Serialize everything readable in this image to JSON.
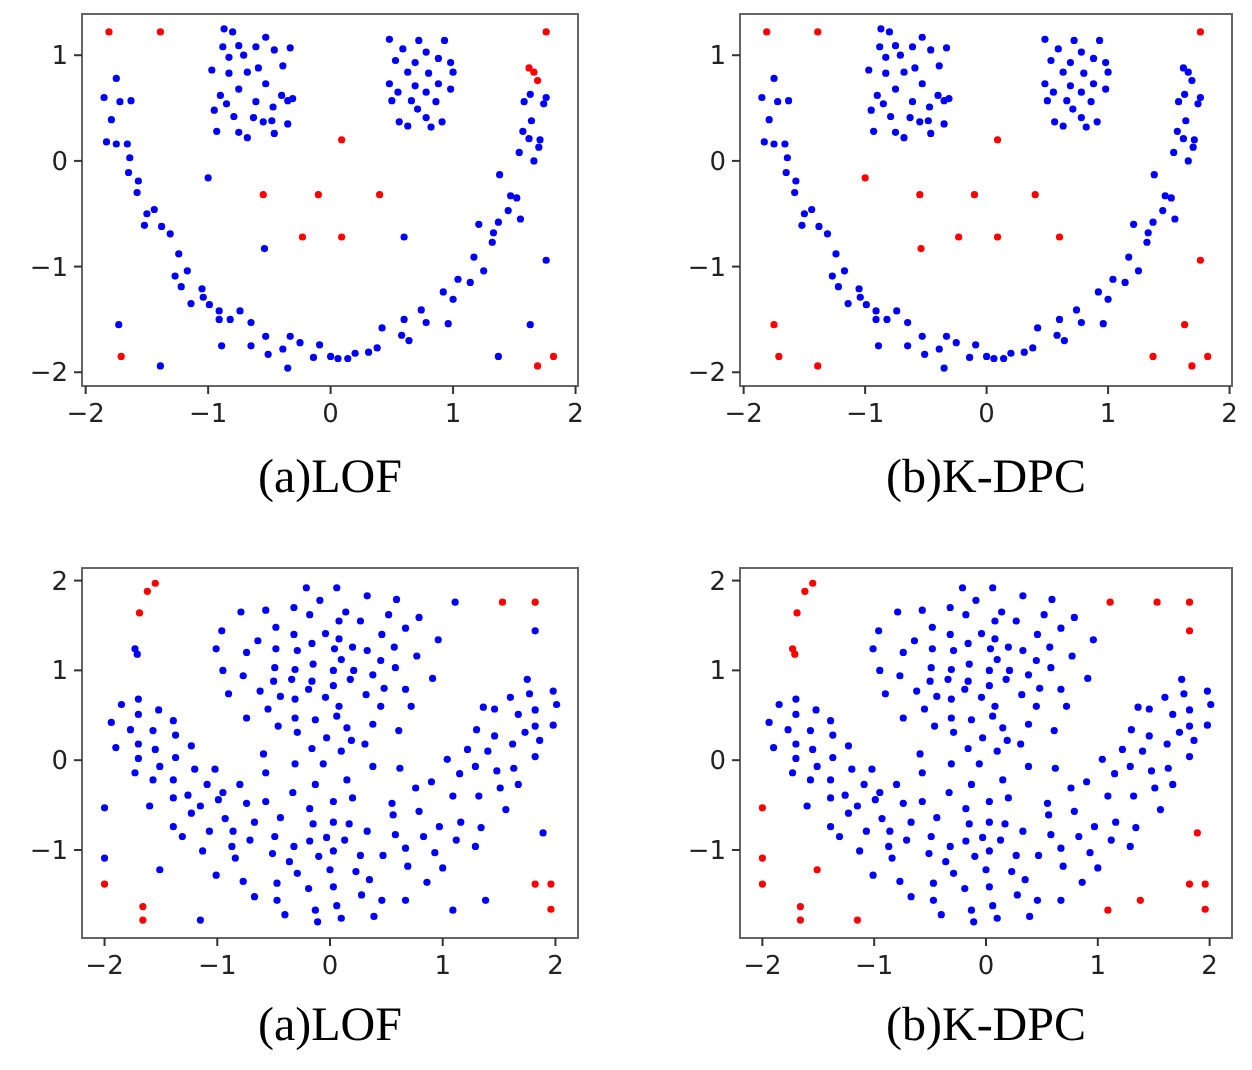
{
  "chart_data": [
    {
      "type": "scatter",
      "xlabel": "(a)LOF",
      "marker": "circle",
      "xlim": [
        -2.03,
        2.02
      ],
      "ylim": [
        -2.13,
        1.39
      ],
      "xticks": [
        -2,
        -1,
        0,
        1,
        2
      ],
      "yticks": [
        -2,
        -1,
        0,
        1
      ],
      "series": [
        {
          "color": "#0000ff",
          "x": [
            -1.85,
            -1.79,
            -1.83,
            -1.75,
            -1.75,
            -1.72,
            -1.63,
            -1.66,
            -1.64,
            -1.65,
            -1.57,
            -1.58,
            -1.5,
            -1.52,
            -1.44,
            -1.38,
            -1.31,
            -1.24,
            -1.27,
            -1.22,
            -1.17,
            -1.14,
            -1.05,
            -1.04,
            -0.99,
            -0.91,
            -0.91,
            -0.82,
            -0.74,
            -0.65,
            -0.65,
            -0.89,
            -0.53,
            -0.51,
            -0.33,
            -0.39,
            -0.35,
            -0.25,
            -0.14,
            -0.09,
            0,
            0.06,
            0.14,
            0.2,
            0.31,
            0.38,
            0.42,
            0.58,
            0.64,
            0.6,
            0.74,
            0.78,
            0.92,
            0.96,
            1,
            1.04,
            1.14,
            1.17,
            1.21,
            1.25,
            1.32,
            1.33,
            1.37,
            1.45,
            1.47,
            1.52,
            1.55,
            1.38,
            1.54,
            1.57,
            1.62,
            1.66,
            1.64,
            1.71,
            1.74,
            1.76,
            1.63,
            1.58,
            1.7,
            -0.87,
            -0.8,
            -0.53,
            -0.88,
            -0.75,
            -0.61,
            -0.46,
            -0.33,
            -0.83,
            -0.71,
            -0.59,
            -0.39,
            -0.97,
            -0.83,
            -0.68,
            -0.53,
            -0.9,
            -0.75,
            -0.4,
            -0.35,
            -0.85,
            -0.61,
            -0.47,
            -0.95,
            -0.79,
            -0.63,
            -0.48,
            -0.35,
            -0.93,
            -0.75,
            -0.68,
            -0.46,
            -0.55,
            -0.31,
            0.48,
            0.72,
            0.93,
            0.59,
            0.78,
            0.53,
            0.69,
            0.88,
            0.98,
            0.63,
            0.8,
            1,
            0.48,
            0.69,
            0.88,
            0.55,
            0.78,
            0.98,
            0.5,
            0.66,
            0.86,
            0.56,
            0.78,
            0.91,
            0.63,
            0.82,
            0.71,
            1.76,
            1.63,
            1.37,
            -1.73,
            -1.39,
            -0.54,
            -1,
            0.6
          ],
          "values": [
            0.6,
            0.39,
            0.18,
            0.16,
            0.78,
            0.56,
            0.57,
            0.16,
            0.03,
            -0.11,
            -0.19,
            -0.3,
            -0.5,
            -0.61,
            -0.46,
            -0.62,
            -0.69,
            -0.88,
            -1.09,
            -1.19,
            -1.04,
            -1.35,
            -1.21,
            -1.29,
            -1.36,
            -1.42,
            -1.5,
            -1.5,
            -1.42,
            -1.53,
            -1.75,
            -1.75,
            -1.66,
            -1.83,
            -1.66,
            -1.78,
            -1.96,
            -1.72,
            -1.86,
            -1.74,
            -1.85,
            -1.87,
            -1.87,
            -1.82,
            -1.81,
            -1.77,
            -1.58,
            -1.65,
            -1.7,
            -1.5,
            -1.41,
            -1.53,
            -1.24,
            -1.54,
            -1.31,
            -1.12,
            -1.15,
            -0.91,
            -0.6,
            -1.04,
            -0.77,
            -0.68,
            -0.58,
            -0.47,
            -0.33,
            -0.35,
            -0.55,
            -0.13,
            0.08,
            0.28,
            0.21,
            0,
            0.38,
            0.2,
            0.54,
            0.6,
            0.63,
            0.56,
            0.13,
            1.25,
            1.22,
            1.17,
            1.08,
            1.09,
            1.08,
            1.05,
            1.07,
            0.98,
            1,
            0.88,
            0.9,
            0.86,
            0.83,
            0.84,
            0.73,
            0.62,
            0.68,
            0.62,
            0.57,
            0.54,
            0.56,
            0.51,
            0.48,
            0.42,
            0.41,
            0.38,
            0.35,
            0.28,
            0.27,
            0.22,
            0.26,
            0.37,
            0.59,
            1.15,
            1.14,
            1.14,
            1.06,
            1.03,
            0.95,
            0.93,
            0.97,
            0.93,
            0.84,
            0.83,
            0.84,
            0.73,
            0.71,
            0.73,
            0.65,
            0.65,
            0.68,
            0.57,
            0.57,
            0.56,
            0.37,
            0.41,
            0.37,
            0.33,
            0.32,
            0.49,
            -0.94,
            -1.55,
            -1.85,
            -1.55,
            -1.94,
            -0.83,
            -0.16,
            -0.72
          ]
        },
        {
          "color": "#ff0000",
          "x": [
            -1.81,
            -1.39,
            1.76,
            1.62,
            1.66,
            1.69,
            0.09,
            -0.55,
            -0.1,
            0.4,
            -0.23,
            0.09,
            -1.71,
            1.69,
            1.82
          ],
          "values": [
            1.22,
            1.22,
            1.22,
            0.88,
            0.84,
            0.76,
            0.2,
            -0.32,
            -0.32,
            -0.32,
            -0.72,
            -0.72,
            -1.85,
            -1.94,
            -1.85
          ]
        }
      ]
    },
    {
      "type": "scatter",
      "xlabel": "(b)K-DPC",
      "marker": "circle",
      "xlim": [
        -2.03,
        2.02
      ],
      "ylim": [
        -2.13,
        1.39
      ],
      "xticks": [
        -2,
        -1,
        0,
        1,
        2
      ],
      "yticks": [
        -2,
        -1,
        0,
        1
      ],
      "series": [
        {
          "color": "#0000ff",
          "x": [
            -1.85,
            -1.79,
            -1.83,
            -1.75,
            -1.75,
            -1.72,
            -1.63,
            -1.66,
            -1.64,
            -1.65,
            -1.57,
            -1.58,
            -1.5,
            -1.52,
            -1.44,
            -1.38,
            -1.31,
            -1.24,
            -1.27,
            -1.22,
            -1.17,
            -1.14,
            -1.05,
            -1.04,
            -0.99,
            -0.91,
            -0.91,
            -0.82,
            -0.74,
            -0.65,
            -0.65,
            -0.89,
            -0.53,
            -0.51,
            -0.33,
            -0.39,
            -0.35,
            -0.25,
            -0.14,
            -0.09,
            0,
            0.06,
            0.14,
            0.2,
            0.31,
            0.38,
            0.42,
            0.58,
            0.64,
            0.6,
            0.74,
            0.78,
            0.92,
            0.96,
            1,
            1.04,
            1.14,
            1.17,
            1.21,
            1.25,
            1.32,
            1.33,
            1.37,
            1.45,
            1.47,
            1.52,
            1.55,
            1.38,
            1.54,
            1.57,
            1.62,
            1.66,
            1.64,
            1.71,
            1.74,
            1.76,
            1.63,
            1.58,
            1.7,
            -0.87,
            -0.8,
            -0.53,
            -0.88,
            -0.75,
            -0.61,
            -0.46,
            -0.33,
            -0.83,
            -0.71,
            -0.59,
            -0.39,
            -0.97,
            -0.83,
            -0.68,
            -0.53,
            -0.9,
            -0.75,
            -0.4,
            -0.35,
            -0.85,
            -0.61,
            -0.47,
            -0.95,
            -0.79,
            -0.63,
            -0.48,
            -0.35,
            -0.93,
            -0.75,
            -0.68,
            -0.46,
            -0.55,
            -0.31,
            0.48,
            0.72,
            0.93,
            0.59,
            0.78,
            0.53,
            0.69,
            0.88,
            0.98,
            0.63,
            0.8,
            1,
            0.48,
            0.69,
            0.88,
            0.55,
            0.78,
            0.98,
            0.5,
            0.66,
            0.86,
            0.56,
            0.78,
            0.91,
            0.63,
            0.82,
            0.71,
            1.62,
            1.66,
            1.69
          ],
          "values": [
            0.6,
            0.39,
            0.18,
            0.16,
            0.78,
            0.56,
            0.57,
            0.16,
            0.03,
            -0.11,
            -0.19,
            -0.3,
            -0.5,
            -0.61,
            -0.46,
            -0.62,
            -0.69,
            -0.88,
            -1.09,
            -1.19,
            -1.04,
            -1.35,
            -1.21,
            -1.29,
            -1.36,
            -1.42,
            -1.5,
            -1.5,
            -1.42,
            -1.53,
            -1.75,
            -1.75,
            -1.66,
            -1.83,
            -1.66,
            -1.78,
            -1.96,
            -1.72,
            -1.86,
            -1.74,
            -1.85,
            -1.87,
            -1.87,
            -1.82,
            -1.81,
            -1.77,
            -1.58,
            -1.65,
            -1.7,
            -1.5,
            -1.41,
            -1.53,
            -1.24,
            -1.54,
            -1.31,
            -1.12,
            -1.15,
            -0.91,
            -0.6,
            -1.04,
            -0.77,
            -0.68,
            -0.58,
            -0.47,
            -0.33,
            -0.35,
            -0.55,
            -0.13,
            0.08,
            0.28,
            0.21,
            0,
            0.38,
            0.2,
            0.54,
            0.6,
            0.63,
            0.56,
            0.13,
            1.25,
            1.22,
            1.17,
            1.08,
            1.09,
            1.08,
            1.05,
            1.07,
            0.98,
            1,
            0.88,
            0.9,
            0.86,
            0.83,
            0.84,
            0.73,
            0.62,
            0.68,
            0.62,
            0.57,
            0.54,
            0.56,
            0.51,
            0.48,
            0.42,
            0.41,
            0.38,
            0.35,
            0.28,
            0.27,
            0.22,
            0.26,
            0.37,
            0.59,
            1.15,
            1.14,
            1.14,
            1.06,
            1.03,
            0.95,
            0.93,
            0.97,
            0.93,
            0.84,
            0.83,
            0.84,
            0.73,
            0.71,
            0.73,
            0.65,
            0.65,
            0.68,
            0.57,
            0.57,
            0.56,
            0.37,
            0.41,
            0.37,
            0.33,
            0.32,
            0.49,
            0.88,
            0.84,
            0.76
          ]
        },
        {
          "color": "#ff0000",
          "x": [
            -1.81,
            -1.39,
            1.76,
            0.09,
            -1,
            -0.55,
            -0.1,
            0.4,
            -0.23,
            0.09,
            0.6,
            -0.54,
            1.76,
            -1.75,
            1.63,
            -1.71,
            -1.39,
            1.37,
            1.69,
            1.82
          ],
          "values": [
            1.22,
            1.22,
            1.22,
            0.2,
            -0.16,
            -0.32,
            -0.32,
            -0.32,
            -0.72,
            -0.72,
            -0.72,
            -0.83,
            -0.94,
            -1.55,
            -1.55,
            -1.85,
            -1.94,
            -1.85,
            -1.94,
            -1.85
          ]
        }
      ]
    },
    {
      "type": "scatter",
      "xlabel": "(a)LOF",
      "marker": "circle",
      "xlim": [
        -2.2,
        2.2
      ],
      "ylim": [
        -1.98,
        2.14
      ],
      "xticks": [
        -2,
        -1,
        0,
        1,
        2
      ],
      "yticks": [
        -1,
        0,
        1,
        2
      ],
      "series": [
        {
          "color": "#0000ff",
          "x": [
            -0.21,
            0.06,
            0.33,
            0.59,
            -0.09,
            -0.79,
            -0.57,
            -0.18,
            0.14,
            0.52,
            0.79,
            -0.32,
            -0.96,
            -0.48,
            -0.04,
            0.08,
            0.27,
            0.46,
            0.67,
            0.96,
            -0.64,
            -0.32,
            -0.16,
            0.08,
            -1.01,
            -0.74,
            -0.48,
            -0.29,
            0.04,
            0.2,
            0.33,
            0.57,
            0.77,
            -0.49,
            -0.15,
            0.1,
            0.45,
            -0.95,
            -0.77,
            -0.31,
            0.03,
            0.21,
            0.38,
            0.58,
            0.91,
            -0.5,
            -0.34,
            -0.16,
            0.03,
            0.18,
            0.32,
            0.48,
            0.67,
            -0.9,
            -0.62,
            -0.44,
            -0.19,
            -0.04,
            -0.31,
            0.45,
            0.72,
            0.08,
            -0.55,
            -0.74,
            -0.31,
            -0.13,
            0.06,
            -0.46,
            -0.29,
            0.15,
            0.38,
            0.61,
            -0.03,
            0.19,
            0.31,
            -0.16,
            0.1,
            -0.59,
            -0.06,
            -0.31,
            0.38,
            0.62,
            -0.57,
            -0.13,
            0.15,
            -1.94,
            -1.9,
            -1.85,
            -1.77,
            -1.7,
            -1.7,
            -1.7,
            -1.7,
            -1.73,
            -1.57,
            -1.52,
            -1.55,
            -1.51,
            -1.57,
            -1.6,
            -1.39,
            -1.37,
            -1.37,
            -1.39,
            -1.39,
            -1.39,
            -1.31,
            -1.23,
            -1.2,
            -1.26,
            -1.15,
            -1.23,
            -1.09,
            -1.13,
            -1.02,
            -0.99,
            -1.01,
            -1.07,
            -0.93,
            -0.95,
            -0.87,
            -0.84,
            -0.86,
            -0.8,
            -0.77,
            -0.74,
            -0.71,
            -0.67,
            -0.67,
            -0.57,
            -0.51,
            -0.49,
            -0.47,
            -0.47,
            -0.44,
            -0.4,
            -0.36,
            -0.33,
            -0.32,
            -0.29,
            -0.19,
            -0.18,
            -0.18,
            -0.15,
            -0.13,
            -0.11,
            -0.1,
            -0.03,
            0,
            0.03,
            0.03,
            0.03,
            0.03,
            0.06,
            0.1,
            0.13,
            0.17,
            0.2,
            0.23,
            0.27,
            0.28,
            0.33,
            0.35,
            0.39,
            0.46,
            0.47,
            0.55,
            0.56,
            0.58,
            0.67,
            0.67,
            0.69,
            0.76,
            0.79,
            0.83,
            0.86,
            0.9,
            0.93,
            0.97,
            1,
            1.04,
            1.09,
            1.12,
            1.15,
            1.16,
            1.22,
            1.3,
            1.29,
            1.32,
            1.34,
            1.29,
            1.4,
            1.46,
            1.46,
            1.48,
            1.51,
            1.56,
            1.6,
            1.62,
            1.63,
            1.67,
            1.67,
            1.73,
            1.75,
            1.77,
            1.82,
            1.82,
            1.82,
            1.86,
            1.98,
            2.01,
            1.98,
            1.36,
            -2,
            -2,
            -1.73,
            -1.71,
            -1.51,
            -1.15,
            1.09,
            1.38,
            1.82,
            1.89,
            1.11
          ],
          "values": [
            1.92,
            1.92,
            1.83,
            1.79,
            1.78,
            1.65,
            1.67,
            1.62,
            1.65,
            1.62,
            1.59,
            1.7,
            1.44,
            1.48,
            1.41,
            1.55,
            1.55,
            1.4,
            1.47,
            1.34,
            1.33,
            1.4,
            1.3,
            1.35,
            1.24,
            1.2,
            1.24,
            1.22,
            1.24,
            1.26,
            1.22,
            1.26,
            1.16,
            1.03,
            1.07,
            1.12,
            1.11,
            1,
            0.94,
            1.01,
            1,
            1,
            0.95,
            1.03,
            0.91,
            0.88,
            0.9,
            0.88,
            0.83,
            0.9,
            0.73,
            0.8,
            0.79,
            0.74,
            0.77,
            0.71,
            0.79,
            0.7,
            0.68,
            0.6,
            0.6,
            0.6,
            0.57,
            0.47,
            0.47,
            0.45,
            0.49,
            0.38,
            0.31,
            0.36,
            0.4,
            0.33,
            0.25,
            0.22,
            0.18,
            0.13,
            0.1,
            0.07,
            -0.04,
            -0.04,
            -0.07,
            -0.09,
            -0.14,
            -0.27,
            -0.22,
            0.42,
            0.14,
            0.62,
            0.34,
            0.68,
            0.51,
            0.18,
            0.02,
            -0.14,
            0.33,
            0.56,
            0.12,
            -0.07,
            -0.22,
            -0.51,
            0.44,
            0.28,
            0.03,
            -0.22,
            -0.42,
            -0.74,
            -0.85,
            0.16,
            -0.1,
            -0.39,
            -0.51,
            -0.59,
            -0.27,
            -1.01,
            -0.1,
            -0.44,
            -1.28,
            -0.79,
            -0.65,
            -0.36,
            -0.96,
            -1.09,
            -0.79,
            -0.27,
            -1.35,
            -0.48,
            -0.89,
            -1.52,
            -0.69,
            -0.46,
            -1.04,
            -0.85,
            -1.37,
            -1.56,
            -0.64,
            -1.72,
            -1.13,
            -0.36,
            -0.96,
            -1.26,
            -1.43,
            -0.9,
            -0.54,
            -0.71,
            -1.67,
            -1.8,
            -1.07,
            -0.86,
            -1.22,
            -0.46,
            -0.69,
            -1.01,
            -1.41,
            -1.62,
            -1.76,
            -0.89,
            -0.71,
            -0.42,
            -1.24,
            -1.06,
            -1.5,
            -0.79,
            -1.33,
            -1.74,
            -1.56,
            -1.06,
            -0.48,
            -0.61,
            -0.83,
            -0.98,
            -1.56,
            -1.18,
            -0.31,
            -0.57,
            -0.85,
            -1.36,
            -0.24,
            -1.03,
            -0.74,
            -1.2,
            0.01,
            -0.4,
            -0.89,
            -0.15,
            -0.69,
            0.12,
            0.34,
            -0.07,
            -0.4,
            -0.75,
            -0.96,
            0.1,
            0.57,
            0.27,
            -0.12,
            -0.31,
            -0.55,
            0.7,
            0.18,
            -0.09,
            0.51,
            -0.27,
            0.31,
            0.9,
            0.74,
            0.56,
            0.38,
            0.04,
            0.22,
            0.77,
            0.62,
            0.39,
            0.59,
            -0.53,
            -1.09,
            1.24,
            1.18,
            -1.22,
            -1.78,
            -1.67,
            -1.56,
            1.44,
            -0.81,
            1.76
          ]
        },
        {
          "color": "#ff0000",
          "x": [
            -2,
            -1.62,
            -1.55,
            -1.69,
            -1.66,
            -1.66,
            1.53,
            1.82,
            1.82,
            1.96,
            1.96
          ],
          "values": [
            -1.38,
            1.88,
            1.97,
            1.64,
            -1.63,
            -1.78,
            1.76,
            1.76,
            -1.38,
            -1.38,
            -1.66
          ]
        }
      ]
    },
    {
      "type": "scatter",
      "xlabel": "(b)K-DPC",
      "marker": "circle",
      "xlim": [
        -2.2,
        2.2
      ],
      "ylim": [
        -1.98,
        2.14
      ],
      "xticks": [
        -2,
        -1,
        0,
        1,
        2
      ],
      "yticks": [
        -1,
        0,
        1,
        2
      ],
      "series": [
        {
          "color": "#0000ff",
          "x": [
            -0.21,
            0.06,
            0.33,
            0.59,
            -0.09,
            -0.79,
            -0.57,
            -0.18,
            0.14,
            0.52,
            0.79,
            -0.32,
            -0.96,
            -0.48,
            -0.04,
            0.08,
            0.27,
            0.46,
            0.67,
            0.96,
            -0.64,
            -0.32,
            -0.16,
            0.08,
            -1.01,
            -0.74,
            -0.48,
            -0.29,
            0.04,
            0.2,
            0.33,
            0.57,
            0.77,
            -0.49,
            -0.15,
            0.1,
            0.45,
            -0.95,
            -0.77,
            -0.31,
            0.03,
            0.21,
            0.38,
            0.58,
            0.91,
            -0.5,
            -0.34,
            -0.16,
            0.03,
            0.18,
            0.32,
            0.48,
            0.67,
            -0.9,
            -0.62,
            -0.44,
            -0.19,
            -0.04,
            -0.31,
            0.45,
            0.72,
            0.08,
            -0.55,
            -0.74,
            -0.31,
            -0.13,
            0.06,
            -0.46,
            -0.29,
            0.15,
            0.38,
            0.61,
            -0.03,
            0.19,
            0.31,
            -0.16,
            0.1,
            -0.59,
            -0.06,
            -0.31,
            0.38,
            0.62,
            -0.57,
            -0.13,
            0.15,
            -1.94,
            -1.9,
            -1.85,
            -1.77,
            -1.7,
            -1.7,
            -1.7,
            -1.7,
            -1.73,
            -1.57,
            -1.52,
            -1.55,
            -1.51,
            -1.57,
            -1.6,
            -1.39,
            -1.37,
            -1.37,
            -1.39,
            -1.39,
            -1.39,
            -1.31,
            -1.23,
            -1.2,
            -1.26,
            -1.15,
            -1.23,
            -1.09,
            -1.13,
            -1.02,
            -0.99,
            -1.01,
            -1.07,
            -0.93,
            -0.95,
            -0.87,
            -0.84,
            -0.86,
            -0.8,
            -0.77,
            -0.74,
            -0.71,
            -0.67,
            -0.67,
            -0.57,
            -0.51,
            -0.49,
            -0.47,
            -0.47,
            -0.44,
            -0.4,
            -0.36,
            -0.33,
            -0.32,
            -0.29,
            -0.19,
            -0.18,
            -0.18,
            -0.15,
            -0.13,
            -0.11,
            -0.1,
            -0.03,
            0,
            0.03,
            0.03,
            0.03,
            0.03,
            0.06,
            0.1,
            0.13,
            0.17,
            0.2,
            0.23,
            0.27,
            0.28,
            0.33,
            0.35,
            0.39,
            0.46,
            0.47,
            0.55,
            0.56,
            0.58,
            0.67,
            0.67,
            0.69,
            0.76,
            0.79,
            0.83,
            0.86,
            0.9,
            0.93,
            0.97,
            1,
            1.04,
            1.09,
            1.12,
            1.15,
            1.16,
            1.22,
            1.3,
            1.29,
            1.32,
            1.34,
            1.29,
            1.4,
            1.46,
            1.46,
            1.48,
            1.51,
            1.56,
            1.6,
            1.62,
            1.63,
            1.67,
            1.67,
            1.73,
            1.75,
            1.77,
            1.82,
            1.82,
            1.82,
            1.86,
            1.98,
            2.01,
            1.98,
            1.36
          ],
          "values": [
            1.92,
            1.92,
            1.83,
            1.79,
            1.78,
            1.65,
            1.67,
            1.62,
            1.65,
            1.62,
            1.59,
            1.7,
            1.44,
            1.48,
            1.41,
            1.55,
            1.55,
            1.4,
            1.47,
            1.34,
            1.33,
            1.4,
            1.3,
            1.35,
            1.24,
            1.2,
            1.24,
            1.22,
            1.24,
            1.26,
            1.22,
            1.26,
            1.16,
            1.03,
            1.07,
            1.12,
            1.11,
            1,
            0.94,
            1.01,
            1,
            1,
            0.95,
            1.03,
            0.91,
            0.88,
            0.9,
            0.88,
            0.83,
            0.9,
            0.73,
            0.8,
            0.79,
            0.74,
            0.77,
            0.71,
            0.79,
            0.7,
            0.68,
            0.6,
            0.6,
            0.6,
            0.57,
            0.47,
            0.47,
            0.45,
            0.49,
            0.38,
            0.31,
            0.36,
            0.4,
            0.33,
            0.25,
            0.22,
            0.18,
            0.13,
            0.1,
            0.07,
            -0.04,
            -0.04,
            -0.07,
            -0.09,
            -0.14,
            -0.27,
            -0.22,
            0.42,
            0.14,
            0.62,
            0.34,
            0.68,
            0.51,
            0.18,
            0.02,
            -0.14,
            0.33,
            0.56,
            0.12,
            -0.07,
            -0.22,
            -0.51,
            0.44,
            0.28,
            0.03,
            -0.22,
            -0.42,
            -0.74,
            -0.85,
            0.16,
            -0.1,
            -0.39,
            -0.51,
            -0.59,
            -0.27,
            -1.01,
            -0.1,
            -0.44,
            -1.28,
            -0.79,
            -0.65,
            -0.36,
            -0.96,
            -1.09,
            -0.79,
            -0.27,
            -1.35,
            -0.48,
            -0.89,
            -1.52,
            -0.69,
            -0.46,
            -1.04,
            -0.85,
            -1.37,
            -1.56,
            -0.64,
            -1.72,
            -1.13,
            -0.36,
            -0.96,
            -1.26,
            -1.43,
            -0.9,
            -0.54,
            -0.71,
            -1.67,
            -1.8,
            -1.07,
            -0.86,
            -1.22,
            -0.46,
            -0.69,
            -1.01,
            -1.41,
            -1.62,
            -1.76,
            -0.89,
            -0.71,
            -0.42,
            -1.24,
            -1.06,
            -1.5,
            -0.79,
            -1.33,
            -1.74,
            -1.56,
            -1.06,
            -0.48,
            -0.61,
            -0.83,
            -0.98,
            -1.56,
            -1.18,
            -0.31,
            -0.57,
            -0.85,
            -1.36,
            -0.24,
            -1.03,
            -0.74,
            -1.2,
            0.01,
            -0.4,
            -0.89,
            -0.15,
            -0.69,
            0.12,
            0.34,
            -0.07,
            -0.4,
            -0.75,
            -0.96,
            0.1,
            0.57,
            0.27,
            -0.12,
            -0.31,
            -0.55,
            0.7,
            0.18,
            -0.09,
            0.51,
            -0.27,
            0.31,
            0.9,
            0.74,
            0.56,
            0.38,
            0.04,
            0.22,
            0.77,
            0.62,
            0.39,
            0.59
          ]
        },
        {
          "color": "#ff0000",
          "x": [
            -2,
            -1.62,
            -1.55,
            -1.69,
            -1.66,
            -1.66,
            1.53,
            1.82,
            1.82,
            1.96,
            1.96,
            -2,
            -2,
            -1.73,
            -1.71,
            -1.51,
            -1.15,
            1.09,
            1.38,
            1.82,
            1.89,
            1.11
          ],
          "values": [
            -1.38,
            1.88,
            1.97,
            1.64,
            -1.63,
            -1.78,
            1.76,
            1.76,
            -1.38,
            -1.38,
            -1.66,
            -0.53,
            -1.09,
            1.24,
            1.18,
            -1.22,
            -1.78,
            -1.67,
            -1.56,
            1.44,
            -0.81,
            1.76
          ]
        }
      ]
    }
  ]
}
